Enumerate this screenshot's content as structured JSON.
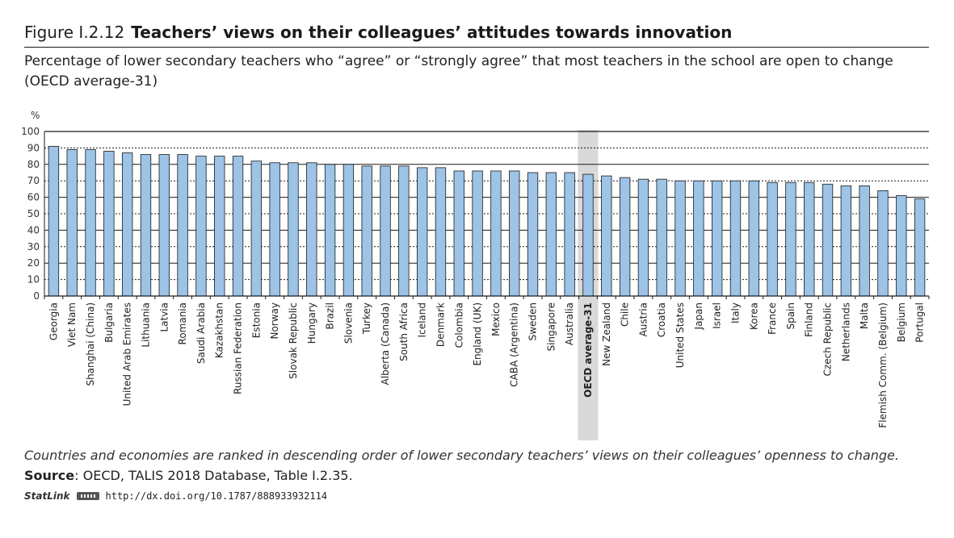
{
  "figure": {
    "number": "Figure I.2.12",
    "title": "Teachers’ views on their colleagues’ attitudes towards innovation",
    "subtitle": "Percentage of lower secondary teachers who “agree” or “strongly agree” that most teachers in the school are open to change (OECD average-31)"
  },
  "chart_data": {
    "type": "bar",
    "ylabel": "%",
    "ylim": [
      0,
      100
    ],
    "yticks": [
      0,
      10,
      20,
      30,
      40,
      50,
      60,
      70,
      80,
      90,
      100
    ],
    "grid": true,
    "highlight_category": "OECD average-31",
    "categories": [
      "Georgia",
      "Viet Nam",
      "Shanghai (China)",
      "Bulgaria",
      "United Arab Emirates",
      "Lithuania",
      "Latvia",
      "Romania",
      "Saudi Arabia",
      "Kazakhstan",
      "Russian Federation",
      "Estonia",
      "Norway",
      "Slovak Republic",
      "Hungary",
      "Brazil",
      "Slovenia",
      "Turkey",
      "Alberta (Canada)",
      "South Africa",
      "Iceland",
      "Denmark",
      "Colombia",
      "England (UK)",
      "Mexico",
      "CABA (Argentina)",
      "Sweden",
      "Singapore",
      "Australia",
      "OECD average-31",
      "New Zealand",
      "Chile",
      "Austria",
      "Croatia",
      "United States",
      "Japan",
      "Israel",
      "Italy",
      "Korea",
      "France",
      "Spain",
      "Finland",
      "Czech Republic",
      "Netherlands",
      "Malta",
      "Flemish Comm. (Belgium)",
      "Belgium",
      "Portugal"
    ],
    "values": [
      91,
      89,
      89,
      88,
      87,
      86,
      86,
      86,
      85,
      85,
      85,
      82,
      81,
      81,
      81,
      80,
      80,
      79,
      79,
      79,
      78,
      78,
      76,
      76,
      76,
      76,
      75,
      75,
      75,
      74,
      73,
      72,
      71,
      71,
      70,
      70,
      70,
      70,
      70,
      69,
      69,
      69,
      68,
      67,
      67,
      64,
      61,
      59
    ],
    "bar_color": "#9dc3e6",
    "bar_border": "#1a1a1a",
    "highlight_color": "#d9d9d9"
  },
  "note": "Countries and economies are ranked in descending order of lower secondary teachers’ views on their colleagues’ openness to change.",
  "source": {
    "label": "Source",
    "text": ": OECD, TALIS 2018 Database, Table I.2.35."
  },
  "statlink": {
    "label": "StatLink",
    "url": "http://dx.doi.org/10.1787/888933932114"
  }
}
